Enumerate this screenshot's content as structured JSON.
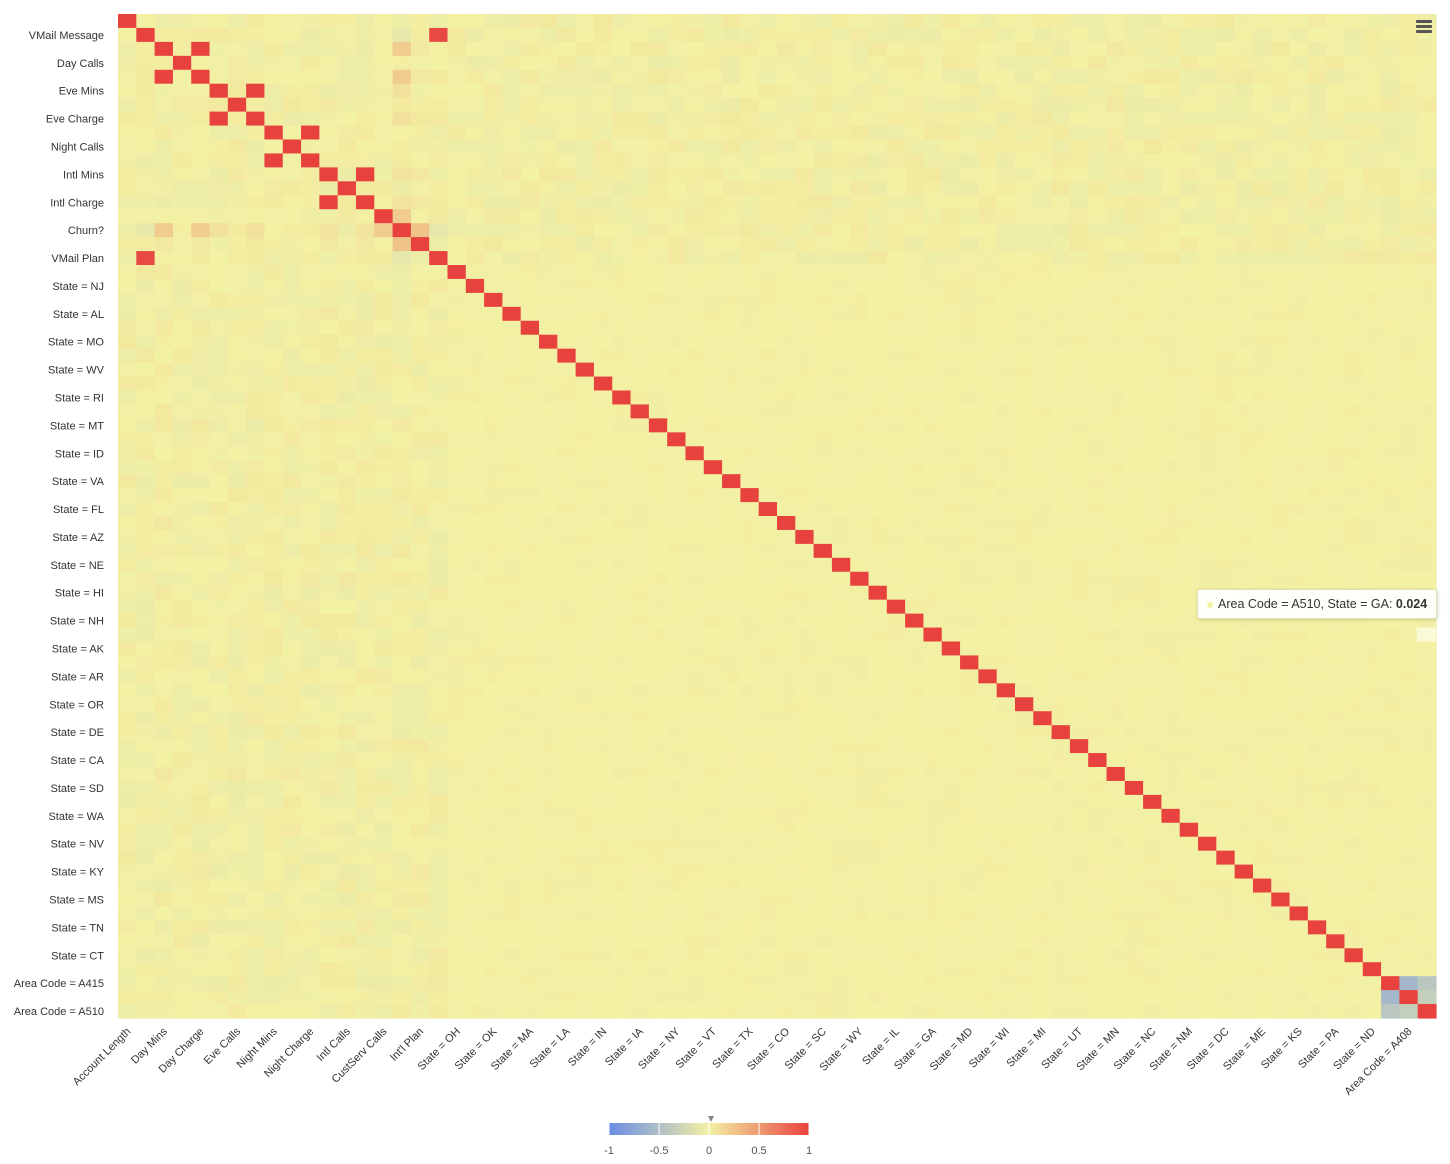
{
  "chart_data": {
    "type": "heatmap",
    "title": "",
    "y_labels": [
      "Account Length",
      "VMail Message",
      "Day Mins",
      "Day Calls",
      "Day Charge",
      "Eve Mins",
      "Eve Calls",
      "Eve Charge",
      "Night Mins",
      "Night Calls",
      "Night Charge",
      "Intl Mins",
      "Intl Calls",
      "Intl Charge",
      "CustServ Calls",
      "Churn?",
      "Int'l Plan",
      "VMail Plan",
      "State = OH",
      "State = NJ",
      "State = OK",
      "State = AL",
      "State = MA",
      "State = MO",
      "State = LA",
      "State = WV",
      "State = IN",
      "State = RI",
      "State = IA",
      "State = MT",
      "State = NY",
      "State = ID",
      "State = VT",
      "State = VA",
      "State = TX",
      "State = FL",
      "State = CO",
      "State = AZ",
      "State = SC",
      "State = NE",
      "State = WY",
      "State = HI",
      "State = IL",
      "State = NH",
      "State = GA",
      "State = AK",
      "State = MD",
      "State = AR",
      "State = WI",
      "State = OR",
      "State = MI",
      "State = DE",
      "State = UT",
      "State = CA",
      "State = MN",
      "State = SD",
      "State = NC",
      "State = WA",
      "State = NM",
      "State = NV",
      "State = DC",
      "State = KY",
      "State = ME",
      "State = MS",
      "State = KS",
      "State = TN",
      "State = PA",
      "State = CT",
      "State = ND",
      "State = A415",
      "State = A510",
      "State = A408"
    ],
    "row_labels_shown": [
      "VMail Message",
      "Day Calls",
      "Eve Mins",
      "Eve Charge",
      "Night Calls",
      "Intl Mins",
      "Intl Charge",
      "Churn?",
      "VMail Plan",
      "State = NJ",
      "State = AL",
      "State = MO",
      "State = WV",
      "State = RI",
      "State = MT",
      "State = ID",
      "State = VA",
      "State = FL",
      "State = AZ",
      "State = NE",
      "State = HI",
      "State = NH",
      "State = AK",
      "State = AR",
      "State = OR",
      "State = DE",
      "State = CA",
      "State = SD",
      "State = WA",
      "State = NV",
      "State = KY",
      "State = MS",
      "State = TN",
      "State = CT",
      "Area Code = A415",
      "Area Code = A510"
    ],
    "col_labels_shown": [
      "Account Length",
      "Day Mins",
      "Day Charge",
      "Eve Calls",
      "Night Mins",
      "Night Charge",
      "Intl Calls",
      "CustServ Calls",
      "Int'l Plan",
      "State = OH",
      "State = OK",
      "State = MA",
      "State = LA",
      "State = IN",
      "State = IA",
      "State = NY",
      "State = VT",
      "State = TX",
      "State = CO",
      "State = SC",
      "State = WY",
      "State = IL",
      "State = GA",
      "State = MD",
      "State = WI",
      "State = MI",
      "State = UT",
      "State = MN",
      "State = NC",
      "State = NM",
      "State = DC",
      "State = ME",
      "State = KS",
      "State = PA",
      "State = ND",
      "Area Code = A408"
    ],
    "strong_correlations": [
      {
        "a": "VMail Message",
        "b": "VMail Plan",
        "value": 0.96
      },
      {
        "a": "Day Mins",
        "b": "Day Charge",
        "value": 1.0
      },
      {
        "a": "Eve Mins",
        "b": "Eve Charge",
        "value": 1.0
      },
      {
        "a": "Night Mins",
        "b": "Night Charge",
        "value": 1.0
      },
      {
        "a": "Intl Mins",
        "b": "Intl Charge",
        "value": 1.0
      },
      {
        "a": "Churn?",
        "b": "Int'l Plan",
        "value": 0.26
      },
      {
        "a": "Churn?",
        "b": "CustServ Calls",
        "value": 0.21
      },
      {
        "a": "Churn?",
        "b": "Day Mins",
        "value": 0.21
      },
      {
        "a": "Churn?",
        "b": "VMail Plan",
        "value": -0.1
      },
      {
        "a": "Area Code = A415",
        "b": "Area Code = A408",
        "value": -0.42
      },
      {
        "a": "Area Code = A510",
        "b": "Area Code = A408",
        "value": -0.35
      },
      {
        "a": "Area Code = A415",
        "b": "Area Code = A510",
        "value": -0.57
      }
    ],
    "diagonal_value": 1,
    "color_axis": {
      "min": -1,
      "max": 1,
      "stops": [
        "#6b8ce6",
        "#f3f1a4",
        "#e8423e"
      ]
    },
    "legend": {
      "ticks": [
        "-1",
        "-0.5",
        "0",
        "0.5",
        "1"
      ],
      "placement": "bottom-center"
    }
  },
  "tooltip": {
    "label": "Area Code = A510, State = GA: ",
    "value": "0.024"
  },
  "menu": {
    "icon": "hamburger-menu-icon"
  }
}
